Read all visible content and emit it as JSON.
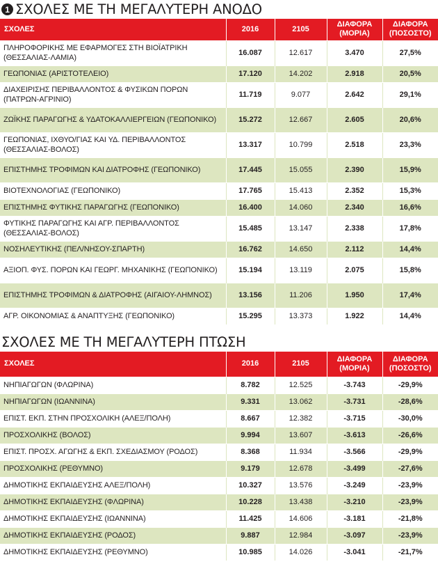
{
  "section1": {
    "badge": "1",
    "title": "ΣΧΟΛΕΣ ΜΕ ΤΗ ΜΕΓΑΛΥΤΕΡΗ ΑΝΟΔΟ",
    "headers": [
      "ΣΧΟΛΕΣ",
      "2016",
      "2105",
      "ΔΙΑΦΟΡΑ (ΜΟΡΙΑ)",
      "ΔΙΑΦΟΡΑ (ΠΟΣΟΣΤΟ)"
    ],
    "rows": [
      {
        "school": "ΠΛΗΡΟΦΟΡΙΚΗΣ ΜΕ ΕΦΑΡΜΟΓΕΣ ΣΤΗ ΒΙΟΪΑΤΡΙΚΗ (ΘΕΣΣΑΛΙΑΣ-ΛΑΜΙΑ)",
        "y2016": "16.087",
        "y2105": "12.617",
        "diff": "3.470",
        "pct": "27,5%"
      },
      {
        "school": "ΓΕΩΠΟΝΙΑΣ (ΑΡΙΣΤΟΤΕΛΕΙΟ)",
        "y2016": "17.120",
        "y2105": "14.202",
        "diff": "2.918",
        "pct": "20,5%"
      },
      {
        "school": "ΔΙΑΧΕΙΡΙΣΗΣ ΠΕΡΙΒΑΛΛΟΝΤΟΣ & ΦΥΣΙΚΩΝ ΠΟΡΩΝ (ΠΑΤΡΩΝ-ΑΓΡΙΝΙΟ)",
        "y2016": "11.719",
        "y2105": "9.077",
        "diff": "2.642",
        "pct": "29,1%"
      },
      {
        "school": "ΖΩΪΚΗΣ ΠΑΡΑΓΩΓΗΣ & ΥΔΑΤΟΚΑΛΛΙΕΡΓΕΙΩΝ (ΓΕΩΠΟΝΙΚΟ)",
        "y2016": "15.272",
        "y2105": "12.667",
        "diff": "2.605",
        "pct": "20,6%"
      },
      {
        "school": "ΓΕΩΠΟΝΙΑΣ, ΙΧΘΥΟ/ΓΙΑΣ ΚΑΙ ΥΔ. ΠΕΡΙΒΑΛΛΟΝΤΟΣ (ΘΕΣΣΑΛΙΑΣ-ΒΟΛΟΣ)",
        "y2016": "13.317",
        "y2105": "10.799",
        "diff": "2.518",
        "pct": "23,3%"
      },
      {
        "school": "ΕΠΙΣΤΗΜΗΣ ΤΡΟΦΙΜΩΝ ΚΑΙ ΔΙΑΤΡΟΦΗΣ (ΓΕΩΠΟΝΙΚΟ)",
        "y2016": "17.445",
        "y2105": "15.055",
        "diff": "2.390",
        "pct": "15,9%"
      },
      {
        "school": "ΒΙΟΤΕΧΝΟΛΟΓΙΑΣ (ΓΕΩΠΟΝΙΚΟ)",
        "y2016": "17.765",
        "y2105": "15.413",
        "diff": "2.352",
        "pct": "15,3%"
      },
      {
        "school": "ΕΠΙΣΤΗΜΗΣ ΦΥΤΙΚΗΣ ΠΑΡΑΓΩΓΗΣ (ΓΕΩΠΟΝΙΚΟ)",
        "y2016": "16.400",
        "y2105": "14.060",
        "diff": "2.340",
        "pct": "16,6%"
      },
      {
        "school": "ΦΥΤΙΚΗΣ ΠΑΡΑΓΩΓΗΣ ΚΑΙ ΑΓΡ. ΠΕΡΙΒΑΛΛΟΝΤΟΣ (ΘΕΣΣΑΛΙΑΣ-ΒΟΛΟΣ)",
        "y2016": "15.485",
        "y2105": "13.147",
        "diff": "2.338",
        "pct": "17,8%"
      },
      {
        "school": "ΝΟΣΗΛΕΥΤΙΚΗΣ (ΠΕΛ/ΝΗΣΟΥ-ΣΠΑΡΤΗ)",
        "y2016": "16.762",
        "y2105": "14.650",
        "diff": "2.112",
        "pct": "14,4%"
      },
      {
        "school": "ΑΞΙΟΠ. ΦΥΣ. ΠΟΡΩΝ ΚΑΙ ΓΕΩΡΓ. ΜΗΧΑΝΙΚΗΣ (ΓΕΩΠΟΝΙΚΟ)",
        "y2016": "15.194",
        "y2105": "13.119",
        "diff": "2.075",
        "pct": "15,8%"
      },
      {
        "school": "ΕΠΙΣΤΗΜΗΣ ΤΡΟΦΙΜΩΝ & ΔΙΑΤΡΟΦΗΣ (ΑΙΓΑΙΟΥ-ΛΗΜΝΟΣ)",
        "y2016": "13.156",
        "y2105": "11.206",
        "diff": "1.950",
        "pct": "17,4%"
      },
      {
        "school": "ΑΓΡ. ΟΙΚΟΝΟΜΙΑΣ & ΑΝΑΠΤΥΞΗΣ (ΓΕΩΠΟΝΙΚΟ)",
        "y2016": "15.295",
        "y2105": "13.373",
        "diff": "1.922",
        "pct": "14,4%"
      }
    ]
  },
  "section2": {
    "title": "ΣΧΟΛΕΣ ΜΕ ΤΗ ΜΕΓΑΛΥΤΕΡΗ ΠΤΩΣΗ",
    "headers": [
      "ΣΧΟΛΕΣ",
      "2016",
      "2105",
      "ΔΙΑΦΟΡΑ (ΜΟΡΙΑ)",
      "ΔΙΑΦΟΡΑ (ΠΟΣΟΣΤΟ)"
    ],
    "rows": [
      {
        "school": "ΝΗΠΙΑΓΩΓΩΝ (ΦΛΩΡΙΝΑ)",
        "y2016": "8.782",
        "y2105": "12.525",
        "diff": "-3.743",
        "pct": "-29,9%"
      },
      {
        "school": "ΝΗΠΙΑΓΩΓΩΝ (ΙΩΑΝΝΙΝΑ)",
        "y2016": "9.331",
        "y2105": "13.062",
        "diff": "-3.731",
        "pct": "-28,6%"
      },
      {
        "school": "ΕΠΙΣΤ. ΕΚΠ. ΣΤΗΝ ΠΡΟΣΧΟΛΙΚΗ (ΑΛΕΞ/ΠΟΛΗ)",
        "y2016": "8.667",
        "y2105": "12.382",
        "diff": "-3.715",
        "pct": "-30,0%"
      },
      {
        "school": "ΠΡΟΣΧΟΛΙΚΗΣ (ΒΟΛΟΣ)",
        "y2016": "9.994",
        "y2105": "13.607",
        "diff": "-3.613",
        "pct": "-26,6%"
      },
      {
        "school": "ΕΠΙΣΤ. ΠΡΟΣΧ. ΑΓΩΓΗΣ & ΕΚΠ. ΣΧΕΔΙΑΣΜΟΥ (ΡΟΔΟΣ)",
        "y2016": "8.368",
        "y2105": "11.934",
        "diff": "-3.566",
        "pct": "-29,9%"
      },
      {
        "school": "ΠΡΟΣΧΟΛΙΚΗΣ (ΡΕΘΥΜΝΟ)",
        "y2016": "9.179",
        "y2105": "12.678",
        "diff": "-3.499",
        "pct": "-27,6%"
      },
      {
        "school": "ΔΗΜΟΤΙΚΗΣ ΕΚΠΑΙΔΕΥΣΗΣ ΑΛΕΞ/ΠΟΛΗ)",
        "y2016": "10.327",
        "y2105": "13.576",
        "diff": "-3.249",
        "pct": "-23,9%"
      },
      {
        "school": "ΔΗΜΟΤΙΚΗΣ ΕΚΠΑΙΔΕΥΣΗΣ (ΦΛΩΡΙΝΑ)",
        "y2016": "10.228",
        "y2105": "13.438",
        "diff": "-3.210",
        "pct": "-23,9%"
      },
      {
        "school": "ΔΗΜΟΤΙΚΗΣ ΕΚΠΑΙΔΕΥΣΗΣ (ΙΩΑΝΝΙΝΑ)",
        "y2016": "11.425",
        "y2105": "14.606",
        "diff": "-3.181",
        "pct": "-21,8%"
      },
      {
        "school": "ΔΗΜΟΤΙΚΗΣ ΕΚΠΑΙΔΕΥΣΗΣ (ΡΟΔΟΣ)",
        "y2016": "9.887",
        "y2105": "12.984",
        "diff": "-3.097",
        "pct": "-23,9%"
      },
      {
        "school": "ΔΗΜΟΤΙΚΗΣ ΕΚΠΑΙΔΕΥΣΗΣ (ΡΕΘΥΜΝΟ)",
        "y2016": "10.985",
        "y2105": "14.026",
        "diff": "-3.041",
        "pct": "-21,7%"
      }
    ]
  },
  "colors": {
    "header_red": "#e31b23",
    "stripe_green": "#dde6c0",
    "text": "#231f20"
  }
}
